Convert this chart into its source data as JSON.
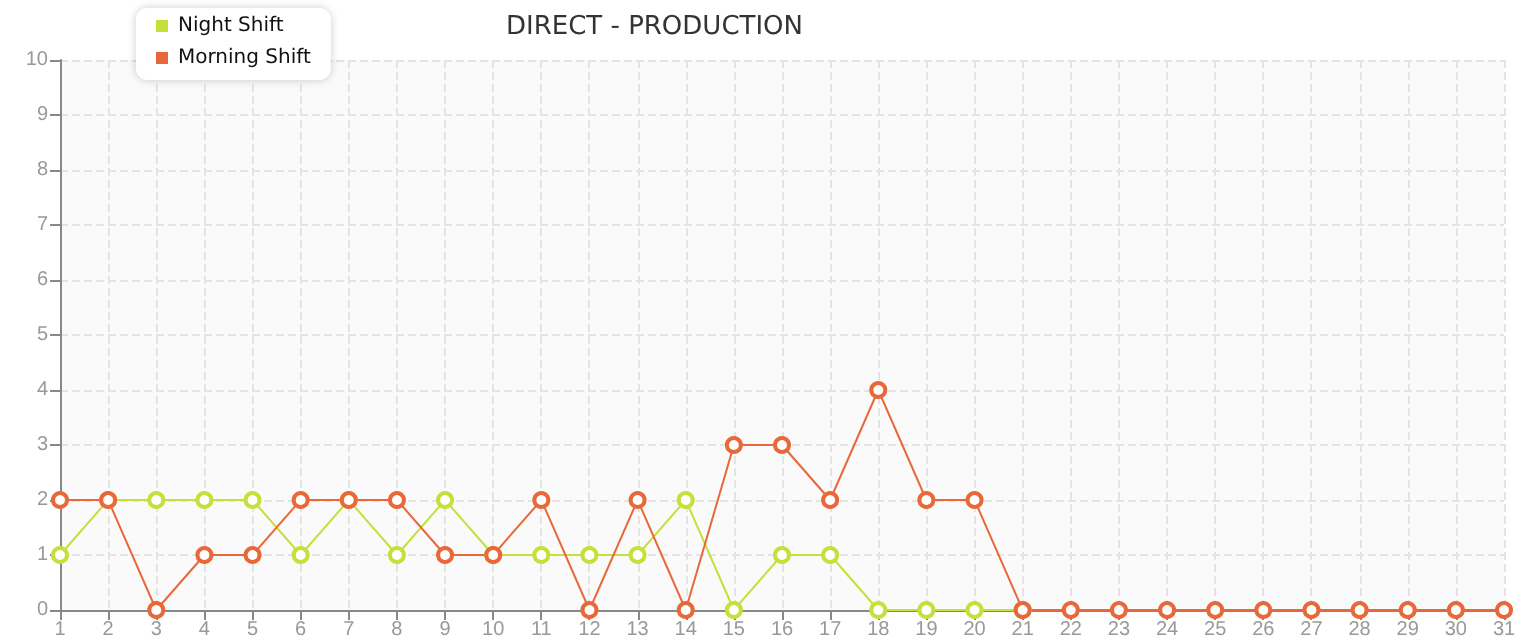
{
  "chart_data": {
    "type": "line",
    "title": "DIRECT - PRODUCTION",
    "x": [
      1,
      2,
      3,
      4,
      5,
      6,
      7,
      8,
      9,
      10,
      11,
      12,
      13,
      14,
      15,
      16,
      17,
      18,
      19,
      20,
      21,
      22,
      23,
      24,
      25,
      26,
      27,
      28,
      29,
      30,
      31
    ],
    "series": [
      {
        "name": "Night Shift",
        "color": "#c5e03a",
        "values": [
          1,
          2,
          2,
          2,
          2,
          1,
          2,
          1,
          2,
          1,
          1,
          1,
          1,
          2,
          0,
          1,
          1,
          0,
          0,
          0,
          0,
          null,
          null,
          null,
          null,
          null,
          null,
          null,
          null,
          null,
          null
        ]
      },
      {
        "name": "Morning Shift",
        "color": "#e8683a",
        "values": [
          2,
          2,
          0,
          1,
          1,
          2,
          2,
          2,
          1,
          1,
          2,
          0,
          2,
          0,
          3,
          3,
          2,
          4,
          2,
          2,
          0,
          0,
          0,
          0,
          0,
          0,
          0,
          0,
          0,
          0,
          0
        ]
      }
    ],
    "xlim": [
      1,
      31
    ],
    "xticks": [
      1,
      2,
      3,
      4,
      5,
      6,
      7,
      8,
      9,
      10,
      11,
      12,
      13,
      14,
      15,
      16,
      17,
      18,
      19,
      20,
      21,
      22,
      23,
      24,
      25,
      26,
      27,
      28,
      29,
      30,
      31
    ],
    "ylim": [
      0,
      10
    ],
    "yticks": [
      0,
      1,
      2,
      3,
      4,
      5,
      6,
      7,
      8,
      9,
      10
    ],
    "grid": true,
    "legend": "top left",
    "marker": "circle",
    "line_style": "solid"
  }
}
